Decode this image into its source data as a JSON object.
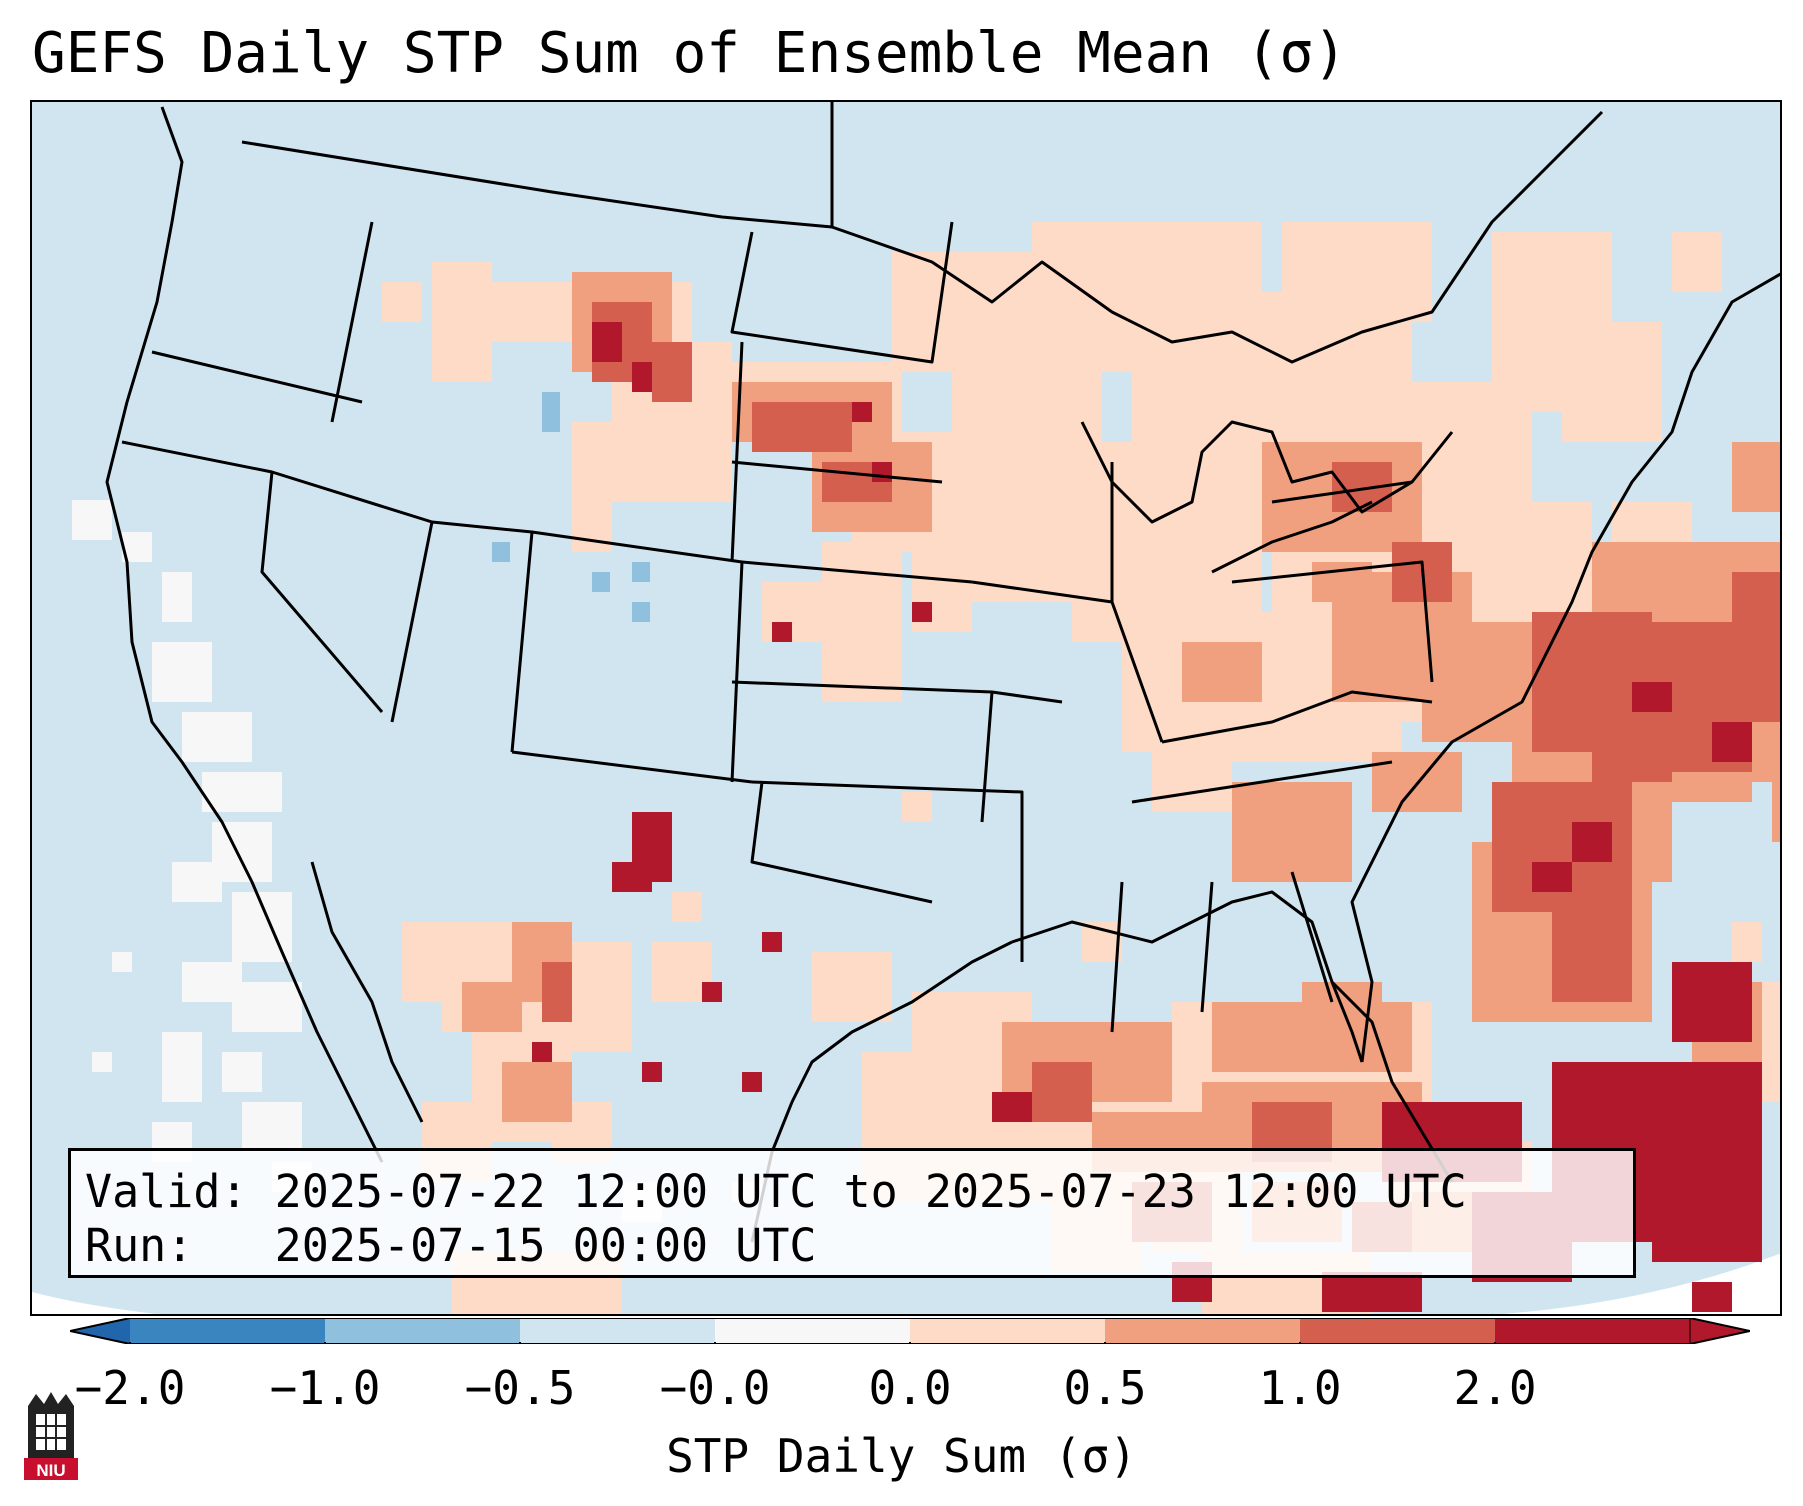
{
  "title": "GEFS Daily STP Sum of Ensemble Mean (σ)",
  "info": {
    "valid_label": "Valid:",
    "valid_value": "2025-07-22 12:00 UTC to 2025-07-23 12:00 UTC",
    "run_label": "Run:",
    "run_value": "2025-07-15 00:00 UTC"
  },
  "colorbar": {
    "label": "STP Daily Sum (σ)",
    "ticks": [
      "−2.0",
      "−1.0",
      "−0.5",
      "−0.0",
      "0.0",
      "0.5",
      "1.0",
      "2.0"
    ],
    "colors": [
      "#3a84c0",
      "#8fc1de",
      "#d1e5f0",
      "#f7f7f7",
      "#fddbc7",
      "#f0a07f",
      "#d45f4f",
      "#b2182b"
    ],
    "extend_low_color": "#2166ac",
    "extend_high_color": "#b2182b"
  },
  "map": {
    "background_color": "#d1e5f0",
    "land_outline_color": "#000000",
    "anomaly_regions": [
      {
        "region": "northern-plains",
        "level": "0.5 to 1.0"
      },
      {
        "region": "great-lakes-ohio-valley",
        "level": "0.0 to 0.5"
      },
      {
        "region": "western-atlantic",
        "level": "1.0 to 2.0"
      },
      {
        "region": "gulf-of-mexico",
        "level": "0.5 to 2.0"
      },
      {
        "region": "caribbean",
        "level": "> 2.0"
      }
    ]
  },
  "logo": {
    "text": "NIU",
    "color": "#c8102e"
  }
}
